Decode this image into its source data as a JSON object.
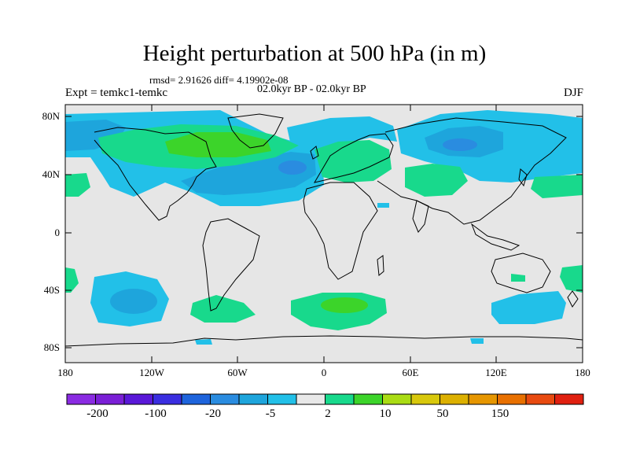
{
  "title": "Height perturbation at 500 hPa (in m)",
  "stats": "rmsd= 2.91626 diff= 4.19902e-08",
  "period": "02.0kyr BP - 02.0kyr BP",
  "experiment": "Expt = temkc1-temkc",
  "season": "DJF",
  "map": {
    "projection": "cylindrical equidistant",
    "lat_range": [
      -90,
      90
    ],
    "lon_range": [
      -180,
      180
    ],
    "lat_ticks": [
      "80N",
      "40N",
      "0",
      "40S",
      "80S"
    ],
    "lon_ticks": [
      "180",
      "120W",
      "60W",
      "0",
      "60E",
      "120E",
      "180"
    ],
    "background_color": "#e6e6e6",
    "coastline_color": "#000000"
  },
  "colorbar": {
    "colors": [
      "#8a2be2",
      "#7a1fd6",
      "#5a18d8",
      "#3a2ee0",
      "#1e64dc",
      "#2a8ce0",
      "#1ea5dc",
      "#22c0e8",
      "#e8e8e8",
      "#18d98c",
      "#3cd42a",
      "#aadc14",
      "#d8c80c",
      "#dcb000",
      "#e69600",
      "#e87000",
      "#e84a10",
      "#e02010"
    ],
    "labels": [
      "-200",
      "-100",
      "-20",
      "-5",
      "2",
      "10",
      "50",
      "150"
    ]
  }
}
